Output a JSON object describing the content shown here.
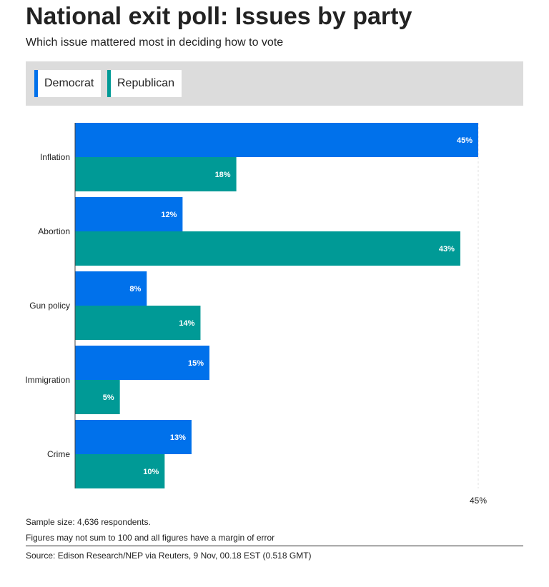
{
  "header": {
    "title": "National exit poll: Issues by party",
    "subtitle": "Which issue mattered most in deciding how to vote"
  },
  "legend": {
    "democrat": "Democrat",
    "republican": "Republican"
  },
  "colors": {
    "democrat": "#0071eb",
    "republican": "#009a96"
  },
  "chart_data": {
    "type": "bar",
    "orientation": "horizontal",
    "title": "National exit poll: Issues by party",
    "subtitle": "Which issue mattered most in deciding how to vote",
    "categories": [
      "Inflation",
      "Abortion",
      "Gun policy",
      "Immigration",
      "Crime"
    ],
    "series": [
      {
        "name": "Democrat",
        "values": [
          45,
          12,
          8,
          15,
          13
        ]
      },
      {
        "name": "Republican",
        "values": [
          18,
          43,
          14,
          5,
          10
        ]
      }
    ],
    "value_format": "{v}%",
    "xlim": [
      0,
      45
    ],
    "x_tick_labels": [
      "45%"
    ],
    "xlabel": "",
    "ylabel": "",
    "grid": false,
    "legend_position": "top"
  },
  "footer": {
    "sample": "Sample size: 4,636 respondents.",
    "note": "Figures may not sum to 100 and all figures have a margin of error",
    "source": "Source: Edison Research/NEP via Reuters, 9 Nov, 00.18 EST (0.518 GMT)"
  }
}
